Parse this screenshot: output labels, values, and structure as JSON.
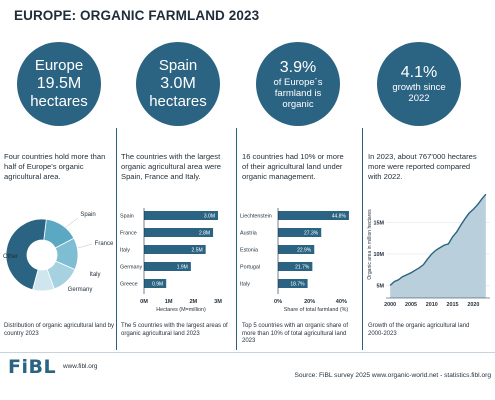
{
  "title": "EUROPE: ORGANIC FARMLAND 2023",
  "circles": [
    {
      "top": "Europe",
      "main": "19.5M",
      "sub": "hectares"
    },
    {
      "top": "Spain",
      "main": "3.0M",
      "sub": "hectares"
    },
    {
      "big": "3.9%",
      "lines": "of Europe´s farmland is organic"
    },
    {
      "big": "4.1%",
      "lines": "growth since 2022"
    }
  ],
  "descriptions": [
    "Four countries hold more than half of Europe's organic agricultural area.",
    "The countries with the largest organic agricultural area were Spain, France and Italy.",
    "16 countries had 10% or more of their agricultural land under organic management.",
    "In 2023, about 767'000 hectares more were reported compared with 2022."
  ],
  "captions": [
    "Distribution of organic agricultural land by country 2023",
    "The 5 countries with the largest areas of organic agricultural land 2023",
    "Top 5 countries with an organic  share of more than 10% of total agricultural land 2023",
    "Growth of the organic agricultural land 2000-2023"
  ],
  "footer": {
    "logo": "FiBL",
    "site": "www.fibl.org",
    "source": "Source: FiBL survey 2025 www.organic-world.net - statistics.fibl.org"
  },
  "colors": {
    "accent": "#2b6382",
    "light": "#b9dbe7",
    "mid": "#5aa8c2"
  },
  "chart_data": [
    {
      "type": "pie",
      "title": "",
      "labels": [
        "Spain",
        "France",
        "Italy",
        "Germany",
        "Other"
      ],
      "values": [
        3.0,
        2.8,
        2.5,
        1.9,
        9.3
      ],
      "unit": "million hectares"
    },
    {
      "type": "bar",
      "orientation": "horizontal",
      "categories": [
        "Spain",
        "France",
        "Italy",
        "Germany",
        "Greece"
      ],
      "values": [
        3.0,
        2.8,
        2.5,
        1.9,
        0.9
      ],
      "data_labels": [
        "3.0M",
        "2.8M",
        "2.5M",
        "1.9M",
        "0.9M"
      ],
      "xlabel": "Hectares (M=million)",
      "xticks": [
        "0M",
        "1M",
        "2M",
        "3M"
      ],
      "xlim": [
        0,
        3
      ]
    },
    {
      "type": "bar",
      "orientation": "horizontal",
      "categories": [
        "Liechtenstein",
        "Austria",
        "Estonia",
        "Portugal",
        "Italy"
      ],
      "values": [
        44.8,
        27.3,
        22.9,
        21.7,
        18.7
      ],
      "data_labels": [
        "44.8%",
        "27.3%",
        "22.9%",
        "21.7%",
        "18.7%"
      ],
      "xlabel": "Share of total farmland (%)",
      "xticks": [
        "0%",
        "20%",
        "40%"
      ],
      "xlim": [
        0,
        48
      ]
    },
    {
      "type": "area",
      "x": [
        2000,
        2001,
        2002,
        2003,
        2004,
        2005,
        2006,
        2007,
        2008,
        2009,
        2010,
        2011,
        2012,
        2013,
        2014,
        2015,
        2016,
        2017,
        2018,
        2019,
        2020,
        2021,
        2022,
        2023
      ],
      "y": [
        5.0,
        5.6,
        5.9,
        6.4,
        6.7,
        7.0,
        7.4,
        7.8,
        8.3,
        9.2,
        10.0,
        10.6,
        11.0,
        11.4,
        11.6,
        12.7,
        13.5,
        14.6,
        15.6,
        16.5,
        17.1,
        17.8,
        18.7,
        19.5
      ],
      "ylabel": "Organic area in million hectares",
      "xticks": [
        "2000",
        "2005",
        "2010",
        "2015",
        "2020"
      ],
      "yticks": [
        "5M",
        "10M",
        "15M"
      ],
      "ylim": [
        3,
        20
      ],
      "grid": true
    }
  ]
}
